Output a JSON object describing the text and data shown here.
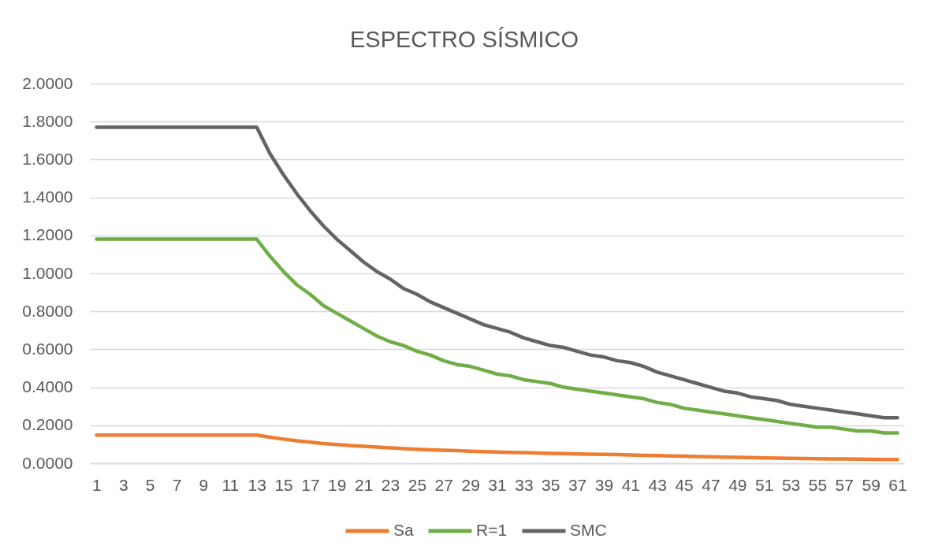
{
  "chart_data": {
    "type": "line",
    "title": "ESPECTRO SÍSMICO",
    "x": [
      1,
      2,
      3,
      4,
      5,
      6,
      7,
      8,
      9,
      10,
      11,
      12,
      13,
      14,
      15,
      16,
      17,
      18,
      19,
      20,
      21,
      22,
      23,
      24,
      25,
      26,
      27,
      28,
      29,
      30,
      31,
      32,
      33,
      34,
      35,
      36,
      37,
      38,
      39,
      40,
      41,
      42,
      43,
      44,
      45,
      46,
      47,
      48,
      49,
      50,
      51,
      52,
      53,
      54,
      55,
      56,
      57,
      58,
      59,
      60,
      61
    ],
    "series": [
      {
        "name": "Sa",
        "color": "#ed7d31",
        "values": [
          0.148,
          0.148,
          0.148,
          0.148,
          0.148,
          0.148,
          0.148,
          0.148,
          0.148,
          0.148,
          0.148,
          0.148,
          0.148,
          0.137,
          0.127,
          0.118,
          0.111,
          0.104,
          0.099,
          0.093,
          0.089,
          0.085,
          0.081,
          0.077,
          0.074,
          0.071,
          0.068,
          0.066,
          0.063,
          0.061,
          0.059,
          0.057,
          0.056,
          0.054,
          0.052,
          0.051,
          0.049,
          0.048,
          0.047,
          0.046,
          0.044,
          0.042,
          0.04,
          0.038,
          0.037,
          0.035,
          0.034,
          0.032,
          0.031,
          0.03,
          0.028,
          0.027,
          0.026,
          0.025,
          0.024,
          0.023,
          0.023,
          0.022,
          0.021,
          0.02,
          0.02
        ]
      },
      {
        "name": "R=1",
        "color": "#70ad47",
        "values": [
          1.18,
          1.18,
          1.18,
          1.18,
          1.18,
          1.18,
          1.18,
          1.18,
          1.18,
          1.18,
          1.18,
          1.18,
          1.18,
          1.09,
          1.01,
          0.94,
          0.89,
          0.83,
          0.79,
          0.75,
          0.71,
          0.67,
          0.64,
          0.62,
          0.59,
          0.57,
          0.54,
          0.52,
          0.51,
          0.49,
          0.47,
          0.46,
          0.44,
          0.43,
          0.42,
          0.4,
          0.39,
          0.38,
          0.37,
          0.36,
          0.35,
          0.34,
          0.32,
          0.31,
          0.29,
          0.28,
          0.27,
          0.26,
          0.25,
          0.24,
          0.23,
          0.22,
          0.21,
          0.2,
          0.19,
          0.19,
          0.18,
          0.17,
          0.17,
          0.16,
          0.16
        ]
      },
      {
        "name": "SMC",
        "color": "#646464",
        "values": [
          1.77,
          1.77,
          1.77,
          1.77,
          1.77,
          1.77,
          1.77,
          1.77,
          1.77,
          1.77,
          1.77,
          1.77,
          1.77,
          1.63,
          1.52,
          1.42,
          1.33,
          1.25,
          1.18,
          1.12,
          1.06,
          1.01,
          0.97,
          0.92,
          0.89,
          0.85,
          0.82,
          0.79,
          0.76,
          0.73,
          0.71,
          0.69,
          0.66,
          0.64,
          0.62,
          0.61,
          0.59,
          0.57,
          0.56,
          0.54,
          0.53,
          0.51,
          0.48,
          0.46,
          0.44,
          0.42,
          0.4,
          0.38,
          0.37,
          0.35,
          0.34,
          0.33,
          0.31,
          0.3,
          0.29,
          0.28,
          0.27,
          0.26,
          0.25,
          0.24,
          0.24
        ]
      }
    ],
    "xlim": [
      0.5,
      61.5
    ],
    "xticks": [
      1,
      3,
      5,
      7,
      9,
      11,
      13,
      15,
      17,
      19,
      21,
      23,
      25,
      27,
      29,
      31,
      33,
      35,
      37,
      39,
      41,
      43,
      45,
      47,
      49,
      51,
      53,
      55,
      57,
      59,
      61
    ],
    "ylim": [
      0,
      2
    ],
    "yticks": [
      {
        "value": 0,
        "label": "0.0000"
      },
      {
        "value": 0.2,
        "label": "0.2000"
      },
      {
        "value": 0.4,
        "label": "0.4000"
      },
      {
        "value": 0.6,
        "label": "0.6000"
      },
      {
        "value": 0.8,
        "label": "0.8000"
      },
      {
        "value": 1,
        "label": "1.0000"
      },
      {
        "value": 1.2,
        "label": "1.2000"
      },
      {
        "value": 1.4,
        "label": "1.4000"
      },
      {
        "value": 1.6,
        "label": "1.6000"
      },
      {
        "value": 1.8,
        "label": "1.8000"
      },
      {
        "value": 2,
        "label": "2.0000"
      }
    ],
    "grid": "y",
    "legend": "bottom",
    "marker": "none",
    "line_style": "solid"
  }
}
